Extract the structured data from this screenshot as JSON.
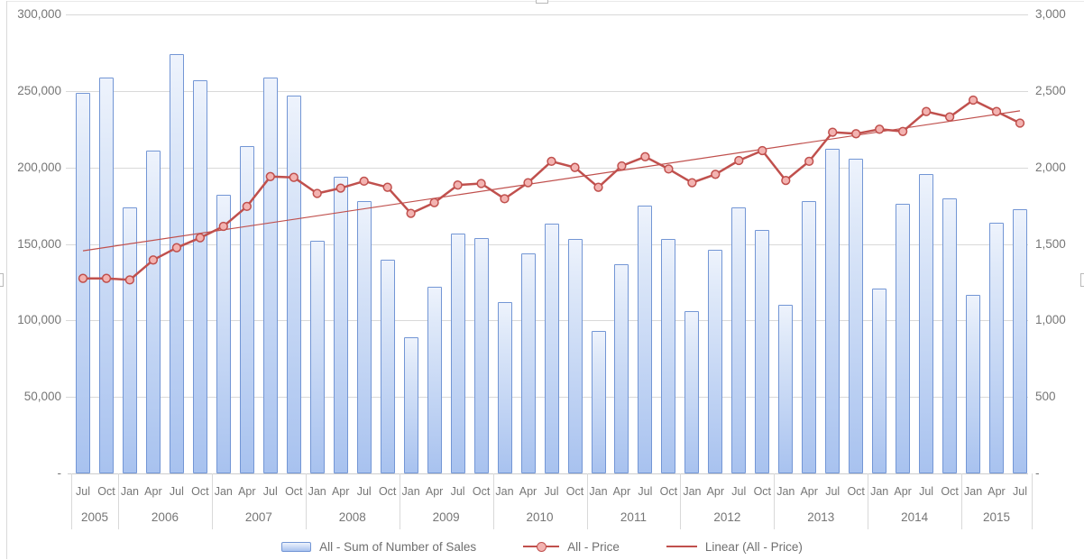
{
  "colors": {
    "bar_border": "#7396d5",
    "bar_fill_top": "#eef3fc",
    "bar_fill_bottom": "#a8c2ef",
    "line": "#c0504d",
    "marker_fill": "#f3b3b1",
    "gridline": "#d9d9d9",
    "axis_text": "#767676"
  },
  "axes": {
    "left": {
      "tick_labels": [
        "300,000",
        "250,000",
        "200,000",
        "150,000",
        "100,000",
        "50,000",
        "-"
      ],
      "tick_values": [
        300000,
        250000,
        200000,
        150000,
        100000,
        50000,
        0
      ]
    },
    "right": {
      "tick_labels": [
        "3,000",
        "2,500",
        "2,000",
        "1,500",
        "1,000",
        "500",
        "-"
      ],
      "tick_values": [
        3000,
        2500,
        2000,
        1500,
        1000,
        500,
        0
      ]
    }
  },
  "chart_data": {
    "type": "bar",
    "title": "",
    "xlabel": "",
    "ylabel_left": "",
    "ylabel_right": "",
    "grid": true,
    "legend_position": "bottom",
    "ylim_left": [
      0,
      300000
    ],
    "ylim_right": [
      0,
      3000
    ],
    "x_years": [
      {
        "label": "2005",
        "quarters": [
          "Jul",
          "Oct"
        ]
      },
      {
        "label": "2006",
        "quarters": [
          "Jan",
          "Apr",
          "Jul",
          "Oct"
        ]
      },
      {
        "label": "2007",
        "quarters": [
          "Jan",
          "Apr",
          "Jul",
          "Oct"
        ]
      },
      {
        "label": "2008",
        "quarters": [
          "Jan",
          "Apr",
          "Jul",
          "Oct"
        ]
      },
      {
        "label": "2009",
        "quarters": [
          "Jan",
          "Apr",
          "Jul",
          "Oct"
        ]
      },
      {
        "label": "2010",
        "quarters": [
          "Jan",
          "Apr",
          "Jul",
          "Oct"
        ]
      },
      {
        "label": "2011",
        "quarters": [
          "Jan",
          "Apr",
          "Jul",
          "Oct"
        ]
      },
      {
        "label": "2012",
        "quarters": [
          "Jan",
          "Apr",
          "Jul",
          "Oct"
        ]
      },
      {
        "label": "2013",
        "quarters": [
          "Jan",
          "Apr",
          "Jul",
          "Oct"
        ]
      },
      {
        "label": "2014",
        "quarters": [
          "Jan",
          "Apr",
          "Jul",
          "Oct"
        ]
      },
      {
        "label": "2015",
        "quarters": [
          "Jan",
          "Apr",
          "Jul"
        ]
      }
    ],
    "series": [
      {
        "name": "All - Sum of Number of Sales",
        "type": "bar",
        "axis": "left",
        "values": [
          249000,
          259000,
          174000,
          211000,
          274000,
          257000,
          182000,
          214000,
          259000,
          247000,
          152000,
          194000,
          178000,
          140000,
          89000,
          122000,
          157000,
          154000,
          112000,
          144000,
          163000,
          153000,
          93000,
          137000,
          175000,
          153000,
          106000,
          146000,
          174000,
          159000,
          110000,
          178000,
          212000,
          206000,
          121000,
          176000,
          196000,
          180000,
          117000,
          164000,
          173000
        ]
      },
      {
        "name": "All - Price",
        "type": "line",
        "axis": "right",
        "values": [
          1275,
          1275,
          1265,
          1395,
          1475,
          1540,
          1615,
          1745,
          1940,
          1935,
          1830,
          1865,
          1910,
          1870,
          1700,
          1770,
          1885,
          1895,
          1795,
          1900,
          2040,
          2000,
          1870,
          2010,
          2070,
          1990,
          1900,
          1955,
          2045,
          2110,
          1915,
          2040,
          2230,
          2220,
          2250,
          2235,
          2365,
          2330,
          2440,
          2365,
          2290
        ]
      },
      {
        "name": "Linear (All - Price)",
        "type": "trendline",
        "axis": "right",
        "start_value": 1455,
        "end_value": 2370
      }
    ]
  }
}
